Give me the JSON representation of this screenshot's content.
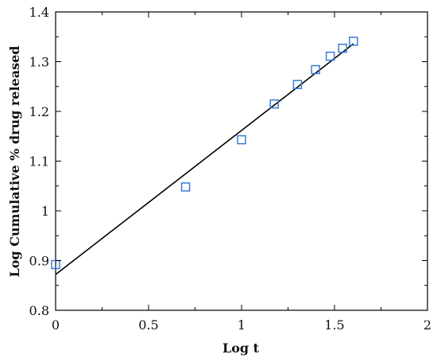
{
  "chart_data": {
    "type": "scatter",
    "title": "",
    "xlabel": "Log t",
    "ylabel": "Log Cumulative % drug released",
    "xlim": [
      0,
      2
    ],
    "ylim": [
      0.8,
      1.4
    ],
    "x_ticks": [
      0,
      0.5,
      1,
      1.5,
      2
    ],
    "x_tick_labels": [
      "0",
      "0.5",
      "1",
      "1.5",
      "2"
    ],
    "y_ticks": [
      0.8,
      0.9,
      1.0,
      1.1,
      1.2,
      1.3,
      1.4
    ],
    "y_tick_labels": [
      "0.8",
      "0.9",
      "1",
      "1.1",
      "1.2",
      "1.3",
      "1.4"
    ],
    "grid": false,
    "series": [
      {
        "type": "scatter",
        "marker": "square-open",
        "color": "#3a7bd5",
        "x": [
          0.0,
          0.699,
          1.0,
          1.176,
          1.301,
          1.398,
          1.477,
          1.544,
          1.602
        ],
        "y": [
          0.892,
          1.048,
          1.143,
          1.215,
          1.254,
          1.284,
          1.311,
          1.327,
          1.341
        ]
      },
      {
        "type": "line",
        "color": "#000000",
        "x": [
          0.0,
          1.602
        ],
        "y": [
          0.872,
          1.336
        ]
      }
    ]
  }
}
